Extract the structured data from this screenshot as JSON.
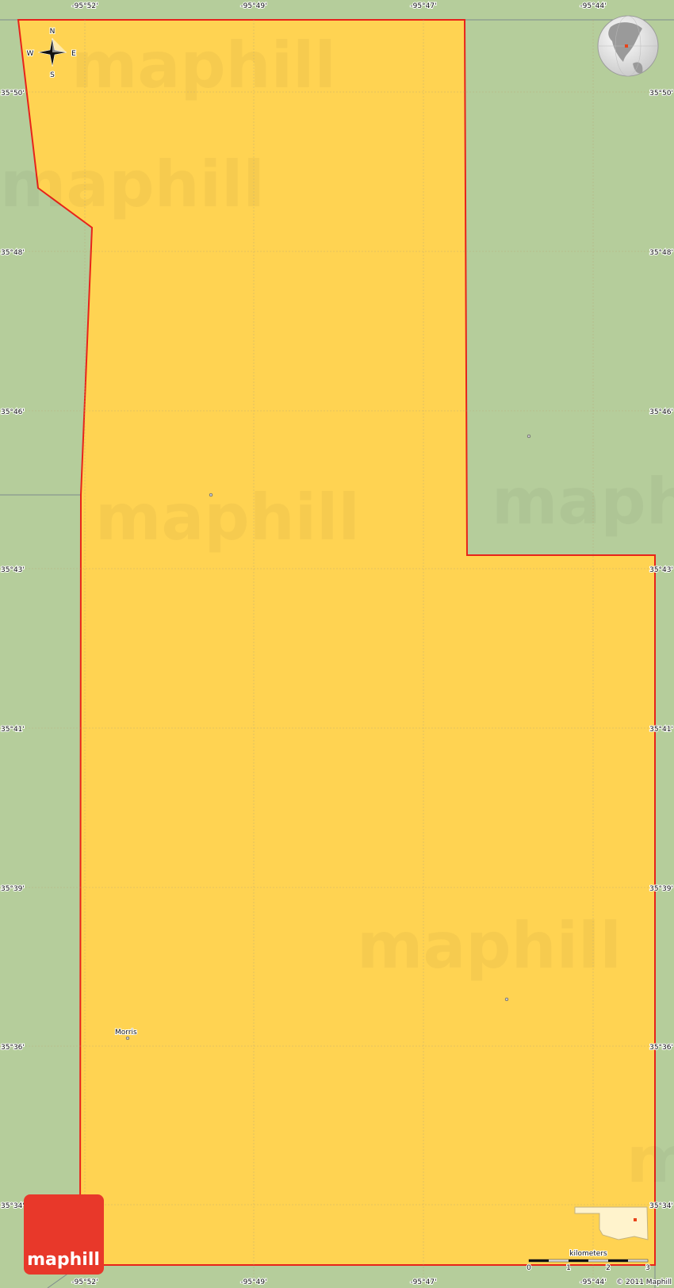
{
  "map": {
    "colors": {
      "land": "#b5cd9b",
      "area": "#ffd352",
      "border": "#e8231a",
      "grid": "#c9b57a"
    },
    "longitude_labels": [
      "-95°52'",
      "-95°49'",
      "-95°47'",
      "-95°44'"
    ],
    "latitude_labels": [
      "35°50'",
      "35°48'",
      "35°46'",
      "35°43'",
      "35°41'",
      "35°39'",
      "35°36'",
      "35°34'"
    ],
    "places": [
      {
        "name": "Morris"
      }
    ],
    "compass": {
      "n": "N",
      "s": "S",
      "e": "E",
      "w": "W"
    },
    "scale": {
      "unit": "kilometers",
      "ticks": [
        "0",
        "1",
        "2",
        "3"
      ]
    },
    "watermark": "maphill",
    "logo": "maphill",
    "copyright": "© 2011 Maphill"
  }
}
